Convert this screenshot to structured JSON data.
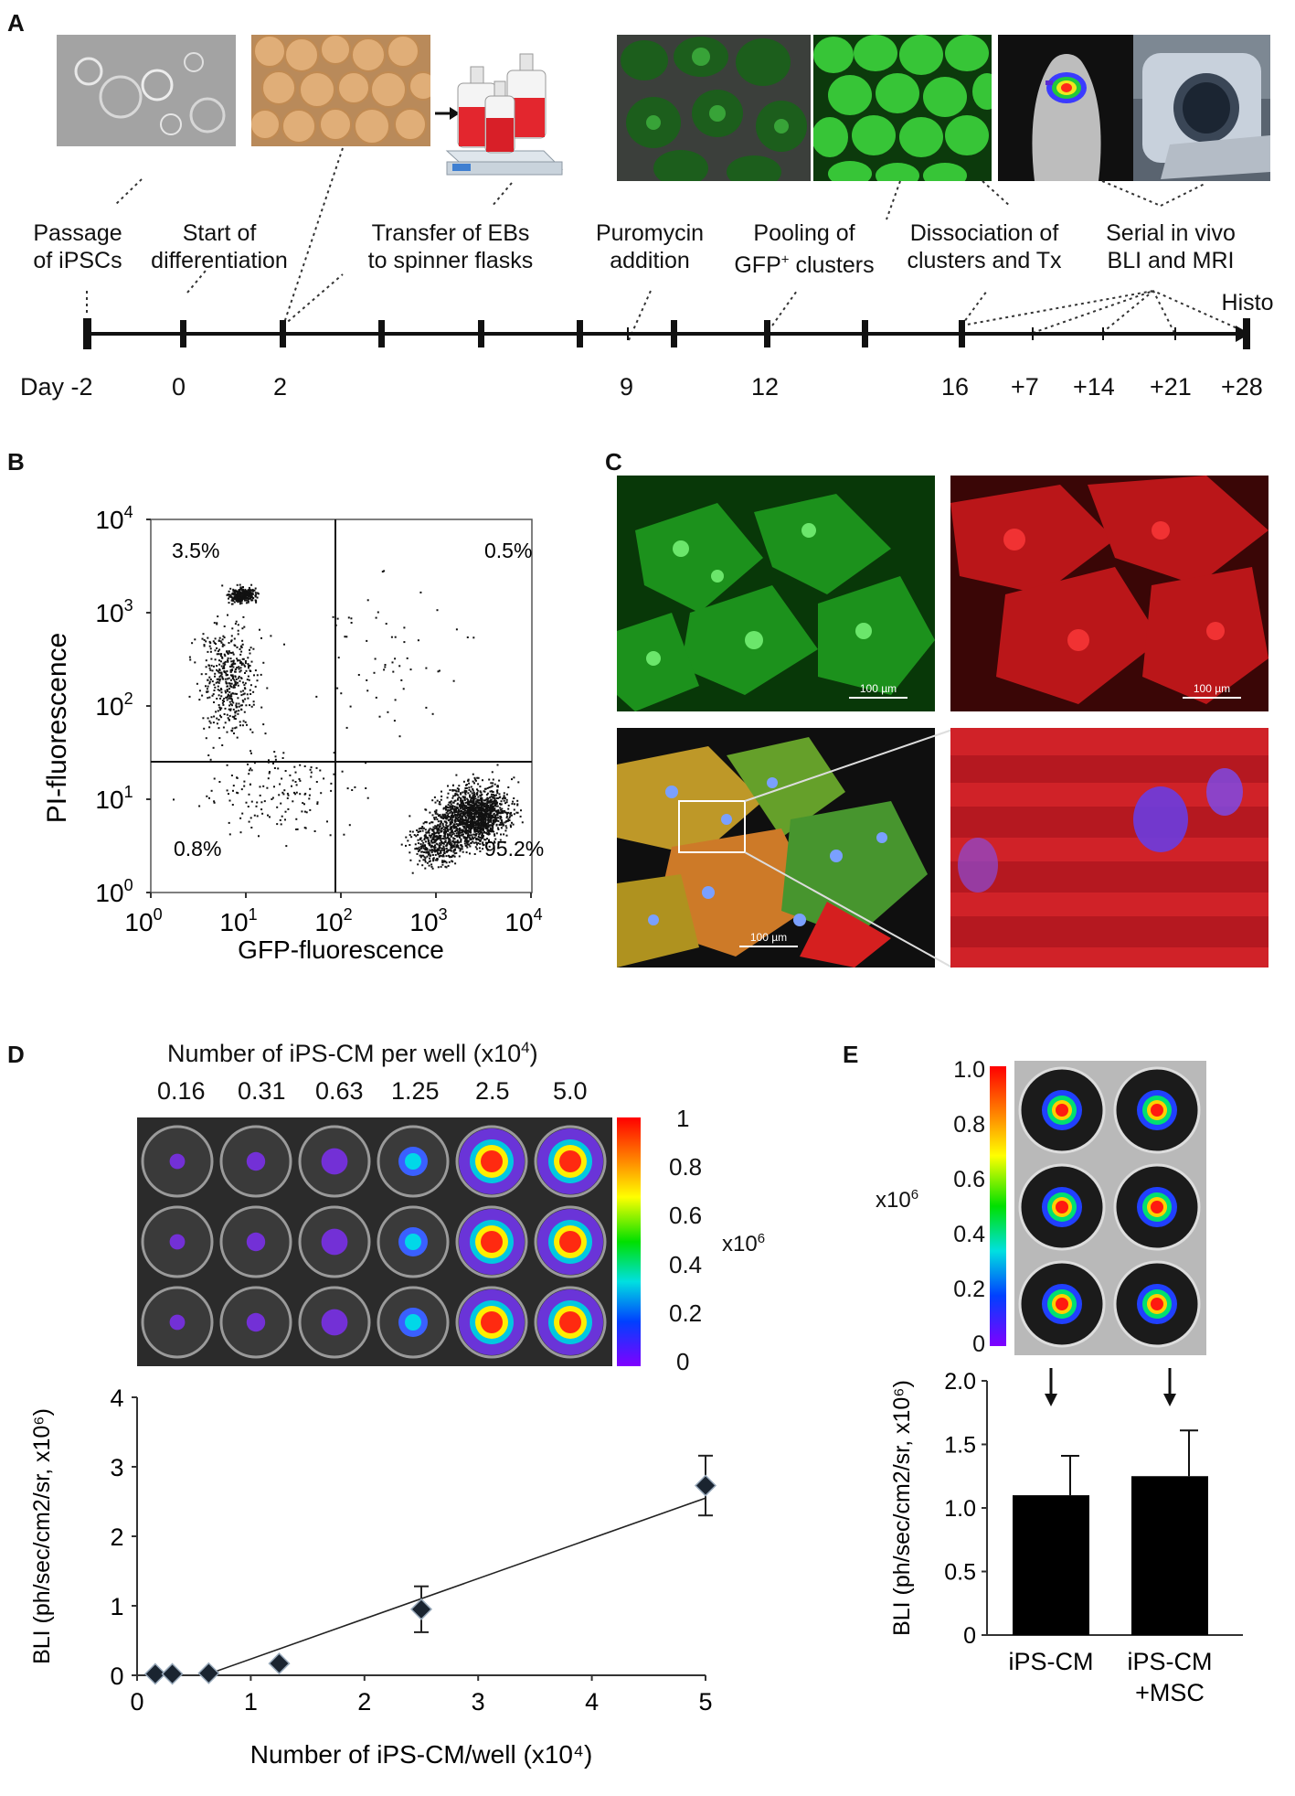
{
  "panels": {
    "a": "A",
    "b": "B",
    "c": "C",
    "d": "D",
    "e": "E"
  },
  "timeline": {
    "labels": [
      {
        "line1": "Passage",
        "line2": "of iPSCs"
      },
      {
        "line1": "Start of",
        "line2": "differentiation"
      },
      {
        "line1": "Transfer of EBs",
        "line2": "to spinner flasks"
      },
      {
        "line1": "Puromycin",
        "line2": "addition"
      },
      {
        "line1": "Pooling of",
        "line2": "GFP+ clusters"
      },
      {
        "line1": "Dissociation of",
        "line2": "clusters and Tx"
      },
      {
        "line1": "Serial in vivo",
        "line2": "BLI and MRI"
      }
    ],
    "histo": "Histo",
    "days": [
      "Day -2",
      "0",
      "2",
      "9",
      "12",
      "16",
      "+7",
      "+14",
      "+21",
      "+28"
    ]
  },
  "flow": {
    "ylabel": "PI-fluorescence",
    "xlabel": "GFP-fluorescence",
    "ticks": [
      "10",
      "10",
      "10",
      "10",
      "10"
    ],
    "exps": [
      "0",
      "1",
      "2",
      "3",
      "4"
    ],
    "quadrants": {
      "ul": "3.5%",
      "ur": "0.5%",
      "ll": "0.8%",
      "lr": "95.2%"
    }
  },
  "micro": {
    "scale": "100 µm"
  },
  "plate": {
    "title": "Number of iPS-CM per well (x10",
    "title_exp": "4",
    "title_end": ")",
    "columns": [
      "0.16",
      "0.31",
      "0.63",
      "1.25",
      "2.5",
      "5.0"
    ],
    "colorbar_ticks": [
      "1",
      "0.8",
      "0.6",
      "0.4",
      "0.2",
      "0"
    ],
    "unit": "x10",
    "unit_exp": "6"
  },
  "e_colorbar": {
    "ticks": [
      "1.0",
      "0.8",
      "0.6",
      "0.4",
      "0.2",
      "0"
    ],
    "unit": "x10",
    "unit_exp": "6"
  },
  "chart_data": [
    {
      "type": "scatter",
      "xlabel": "Number of iPS-CM/well (x10⁴)",
      "ylabel": "BLI (ph/sec/cm2/sr, x10⁶)",
      "xlim": [
        0,
        5
      ],
      "ylim": [
        0,
        4
      ],
      "xticks": [
        "0",
        "1",
        "2",
        "3",
        "4",
        "5"
      ],
      "yticks": [
        "0",
        "1",
        "2",
        "3",
        "4"
      ],
      "points": [
        {
          "x": 0.16,
          "y": 0.02,
          "err": 0
        },
        {
          "x": 0.31,
          "y": 0.02,
          "err": 0
        },
        {
          "x": 0.63,
          "y": 0.03,
          "err": 0
        },
        {
          "x": 1.25,
          "y": 0.17,
          "err": 0
        },
        {
          "x": 2.5,
          "y": 0.95,
          "err": 0.33
        },
        {
          "x": 5.0,
          "y": 2.73,
          "err": 0.43
        }
      ],
      "fit": {
        "x": [
          0.63,
          5.0
        ],
        "y": [
          0.02,
          2.55
        ]
      }
    },
    {
      "type": "bar",
      "ylabel": "BLI (ph/sec/cm2/sr, x10⁶)",
      "ylim": [
        0,
        2
      ],
      "yticks": [
        "0",
        "0.5",
        "1.0",
        "1.5",
        "2.0"
      ],
      "categories": [
        "iPS-CM",
        "iPS-CM +MSC"
      ],
      "category_lines": [
        [
          "iPS-CM"
        ],
        [
          "iPS-CM",
          "+MSC"
        ]
      ],
      "values": [
        1.1,
        1.25
      ],
      "errors": [
        0.31,
        0.36
      ]
    }
  ]
}
